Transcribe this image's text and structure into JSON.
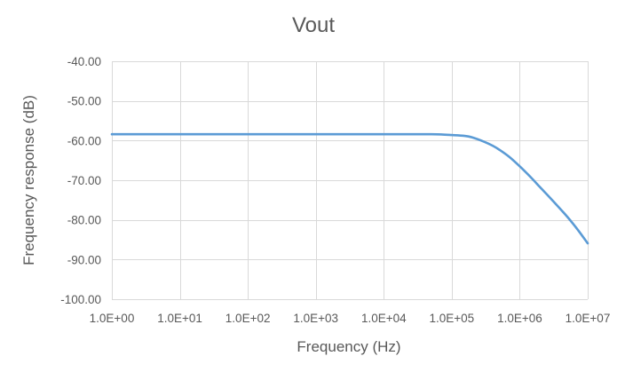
{
  "chart_data": {
    "type": "line",
    "title": "Vout",
    "xlabel": "Frequency (Hz)",
    "ylabel": "Frequency response (dB)",
    "x_scale": "log",
    "xlim": [
      1,
      10000000
    ],
    "ylim": [
      -100,
      -40
    ],
    "grid": true,
    "legend": "none",
    "x_ticks": [
      1,
      10,
      100,
      1000,
      10000,
      100000,
      1000000,
      10000000
    ],
    "x_tick_labels": [
      "1.0E+00",
      "1.0E+01",
      "1.0E+02",
      "1.0E+03",
      "1.0E+04",
      "1.0E+05",
      "1.0E+06",
      "1.0E+07"
    ],
    "y_ticks": [
      -40,
      -50,
      -60,
      -70,
      -80,
      -90,
      -100
    ],
    "y_tick_labels": [
      "-40.00",
      "-50.00",
      "-60.00",
      "-70.00",
      "-80.00",
      "-90.00",
      "-100.00"
    ],
    "series": [
      {
        "color": "#5b9bd5",
        "x": [
          1,
          10,
          100,
          1000,
          10000,
          30000,
          50000,
          70000,
          100000,
          150000,
          200000,
          300000,
          400000,
          500000,
          700000,
          1000000,
          1500000,
          2000000,
          3000000,
          5000000,
          7000000,
          10000000
        ],
        "y": [
          -58.4,
          -58.4,
          -58.4,
          -58.4,
          -58.4,
          -58.4,
          -58.4,
          -58.45,
          -58.6,
          -58.8,
          -59.2,
          -60.3,
          -61.3,
          -62.3,
          -64.1,
          -66.5,
          -69.5,
          -71.8,
          -75.0,
          -79.2,
          -82.3,
          -85.9
        ]
      }
    ]
  }
}
